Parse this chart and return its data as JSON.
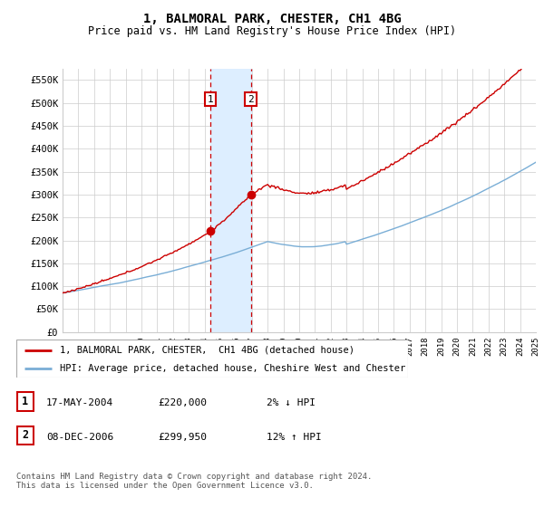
{
  "title": "1, BALMORAL PARK, CHESTER, CH1 4BG",
  "subtitle": "Price paid vs. HM Land Registry's House Price Index (HPI)",
  "ylabel_ticks": [
    "£0",
    "£50K",
    "£100K",
    "£150K",
    "£200K",
    "£250K",
    "£300K",
    "£350K",
    "£400K",
    "£450K",
    "£500K",
    "£550K"
  ],
  "ylim": [
    0,
    575000
  ],
  "yticks": [
    0,
    50000,
    100000,
    150000,
    200000,
    250000,
    300000,
    350000,
    400000,
    450000,
    500000,
    550000
  ],
  "xmin": 1995,
  "xmax": 2025,
  "transaction1_x": 2004.38,
  "transaction1_y": 220000,
  "transaction2_x": 2006.93,
  "transaction2_y": 299950,
  "shade_x1": 2004.38,
  "shade_x2": 2006.93,
  "legend_line1": "1, BALMORAL PARK, CHESTER,  CH1 4BG (detached house)",
  "legend_line2": "HPI: Average price, detached house, Cheshire West and Chester",
  "table_row1_num": "1",
  "table_row1_date": "17-MAY-2004",
  "table_row1_price": "£220,000",
  "table_row1_hpi": "2% ↓ HPI",
  "table_row2_num": "2",
  "table_row2_date": "08-DEC-2006",
  "table_row2_price": "£299,950",
  "table_row2_hpi": "12% ↑ HPI",
  "footer": "Contains HM Land Registry data © Crown copyright and database right 2024.\nThis data is licensed under the Open Government Licence v3.0.",
  "line_color_red": "#cc0000",
  "line_color_blue": "#7aaed6",
  "shade_color": "#ddeeff",
  "bg_color": "#ffffff",
  "grid_color": "#cccccc"
}
